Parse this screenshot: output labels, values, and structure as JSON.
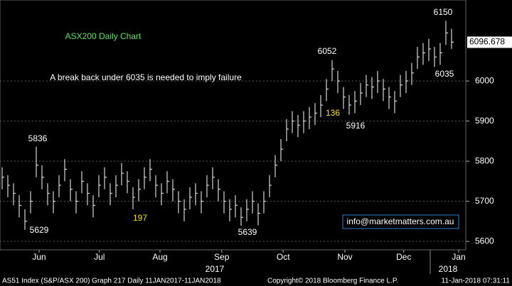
{
  "chart_data": {
    "type": "hlc",
    "title": "ASX200 Daily Chart",
    "annotations": {
      "note": "A break back under 6035 is needed to imply failure",
      "high": "6150",
      "mid_high": "6052",
      "recent_low": "6035",
      "nov_low": "5916",
      "jun_high": "5836",
      "jun_low": "5629",
      "sep_low": "5639",
      "count_a": "136",
      "count_b": "197",
      "contact": "info@marketmatters.com.au"
    },
    "last_price": 6096.678,
    "year_labels": [
      "2017",
      "2018"
    ],
    "footer": {
      "left": "AS51 Index (S&P/ASX 200) Graph 217  Daily 11JAN2017-11JAN2018",
      "middle": "Copyright© 2018 Bloomberg Finance L.P.",
      "right": "11-Jan-2018 07:31:11"
    },
    "close": [
      5760,
      5740,
      5720,
      5690,
      5650,
      5700,
      5790,
      5760,
      5720,
      5700,
      5740,
      5780,
      5730,
      5700,
      5750,
      5720,
      5690,
      5740,
      5760,
      5720,
      5740,
      5770,
      5750,
      5710,
      5730,
      5760,
      5780,
      5740,
      5720,
      5750,
      5730,
      5700,
      5680,
      5710,
      5720,
      5700,
      5740,
      5760,
      5730,
      5700,
      5680,
      5690,
      5660,
      5680,
      5700,
      5670,
      5700,
      5740,
      5790,
      5830,
      5880,
      5900,
      5890,
      5900,
      5910,
      5920,
      5940,
      5980,
      6030,
      6000,
      5960,
      5940,
      5950,
      5970,
      5990,
      5985,
      6000,
      5980,
      5960,
      5950,
      5990,
      6000,
      6020,
      6060,
      6070,
      6080,
      6060,
      6070,
      6120,
      6097
    ],
    "high": [
      5785,
      5765,
      5745,
      5715,
      5680,
      5725,
      5836,
      5790,
      5745,
      5725,
      5765,
      5805,
      5755,
      5725,
      5775,
      5745,
      5715,
      5765,
      5785,
      5745,
      5765,
      5795,
      5775,
      5735,
      5755,
      5785,
      5805,
      5765,
      5745,
      5775,
      5755,
      5725,
      5705,
      5735,
      5745,
      5725,
      5765,
      5785,
      5755,
      5725,
      5705,
      5715,
      5685,
      5705,
      5725,
      5695,
      5725,
      5765,
      5815,
      5855,
      5905,
      5925,
      5915,
      5925,
      5935,
      5945,
      5965,
      6005,
      6052,
      6025,
      5985,
      5965,
      5975,
      5995,
      6015,
      6010,
      6025,
      6005,
      5985,
      5975,
      6015,
      6025,
      6045,
      6085,
      6095,
      6105,
      6085,
      6095,
      6150,
      6130
    ],
    "low": [
      5730,
      5710,
      5690,
      5660,
      5629,
      5670,
      5760,
      5730,
      5690,
      5670,
      5710,
      5750,
      5700,
      5670,
      5720,
      5690,
      5660,
      5710,
      5730,
      5690,
      5710,
      5740,
      5720,
      5680,
      5700,
      5730,
      5750,
      5710,
      5690,
      5720,
      5700,
      5670,
      5650,
      5680,
      5690,
      5670,
      5710,
      5730,
      5700,
      5670,
      5650,
      5660,
      5639,
      5650,
      5670,
      5640,
      5670,
      5710,
      5760,
      5800,
      5850,
      5870,
      5860,
      5870,
      5880,
      5890,
      5910,
      5950,
      6000,
      5970,
      5930,
      5916,
      5920,
      5940,
      5960,
      5955,
      5970,
      5950,
      5930,
      5920,
      5960,
      5970,
      5990,
      6030,
      6040,
      6050,
      6035,
      6040,
      6090,
      6080
    ],
    "color": "#ffffff",
    "xlim": [
      -0.375,
      81.5
    ],
    "xticks": [
      {
        "value": 6.5,
        "label": "Jun"
      },
      {
        "value": 17.1,
        "label": "Jul"
      },
      {
        "value": 27.75,
        "label": "Aug"
      },
      {
        "value": 38.6,
        "label": "Sep"
      },
      {
        "value": 49.4,
        "label": "Oct"
      },
      {
        "value": 60.25,
        "label": "Nov"
      },
      {
        "value": 70.6,
        "label": "Dec"
      },
      {
        "value": 80.25,
        "label": "Jan"
      }
    ],
    "ylim": [
      5579,
      6202
    ],
    "yticks": [
      5600,
      5700,
      5800,
      5900,
      6000
    ],
    "grid": true
  }
}
